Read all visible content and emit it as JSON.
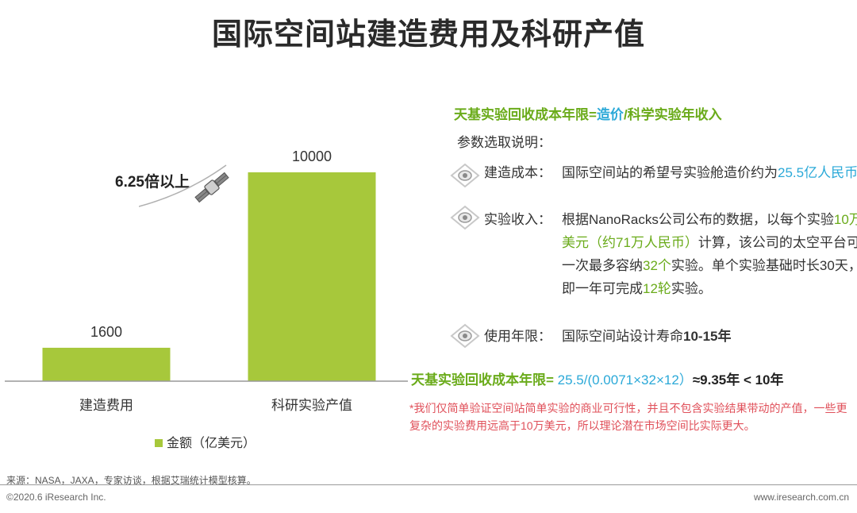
{
  "title": "国际空间站建造费用及科研产值",
  "annotation": "6.25倍以上",
  "colors": {
    "bar": "#a7c83b",
    "green": "#6aab1a",
    "blue": "#2ba9d8",
    "red": "#e0505a"
  },
  "chart_data": {
    "type": "bar",
    "categories": [
      "建造费用",
      "科研实验产值"
    ],
    "series": [
      {
        "name": "金额（亿美元）",
        "values": [
          1600,
          10000
        ]
      }
    ],
    "value_labels": [
      "1600",
      "10000"
    ],
    "legend_position": "bottom",
    "grid": false,
    "ylim": [
      0,
      10000
    ]
  },
  "formula": {
    "part1": "天基实验回收成本年限=",
    "part2": "造价",
    "part3": "/",
    "part4": "科学实验年收入"
  },
  "params_heading": "参数选取说明：",
  "params": [
    {
      "label": "建造成本：",
      "segments": [
        "国际空间站的希望号实验舱造价约为",
        "25.5亿人民币"
      ]
    },
    {
      "label": "实验收入：",
      "segments": [
        "根据NanoRacks公司公布的数据，以每个实验",
        "10万美元（约71万人民币）",
        "计算，该公司的太空平台可一次最多容纳",
        "32个",
        "实验。单个实验基础时长30天，即一年可完成",
        "12轮",
        "实验。"
      ]
    },
    {
      "label": "使用年限：",
      "segments": [
        "国际空间站设计寿命",
        "10-15年"
      ]
    }
  ],
  "conclusion": {
    "label": "天基实验回收成本年限=",
    "calc": " 25.5/(0.0071×32×12）",
    "result": "≈9.35年 < 10年"
  },
  "note": "*我们仅简单验证空间站简单实验的商业可行性，并且不包含实验结果带动的产值，一些更复杂的实验费用远高于10万美元，所以理论潜在市场空间比实际更大。",
  "source": "来源：NASA，JAXA，专家访谈，根据艾瑞统计模型核算。",
  "footer_left": "©2020.6 iResearch Inc.",
  "footer_right": "www.iresearch.com.cn"
}
